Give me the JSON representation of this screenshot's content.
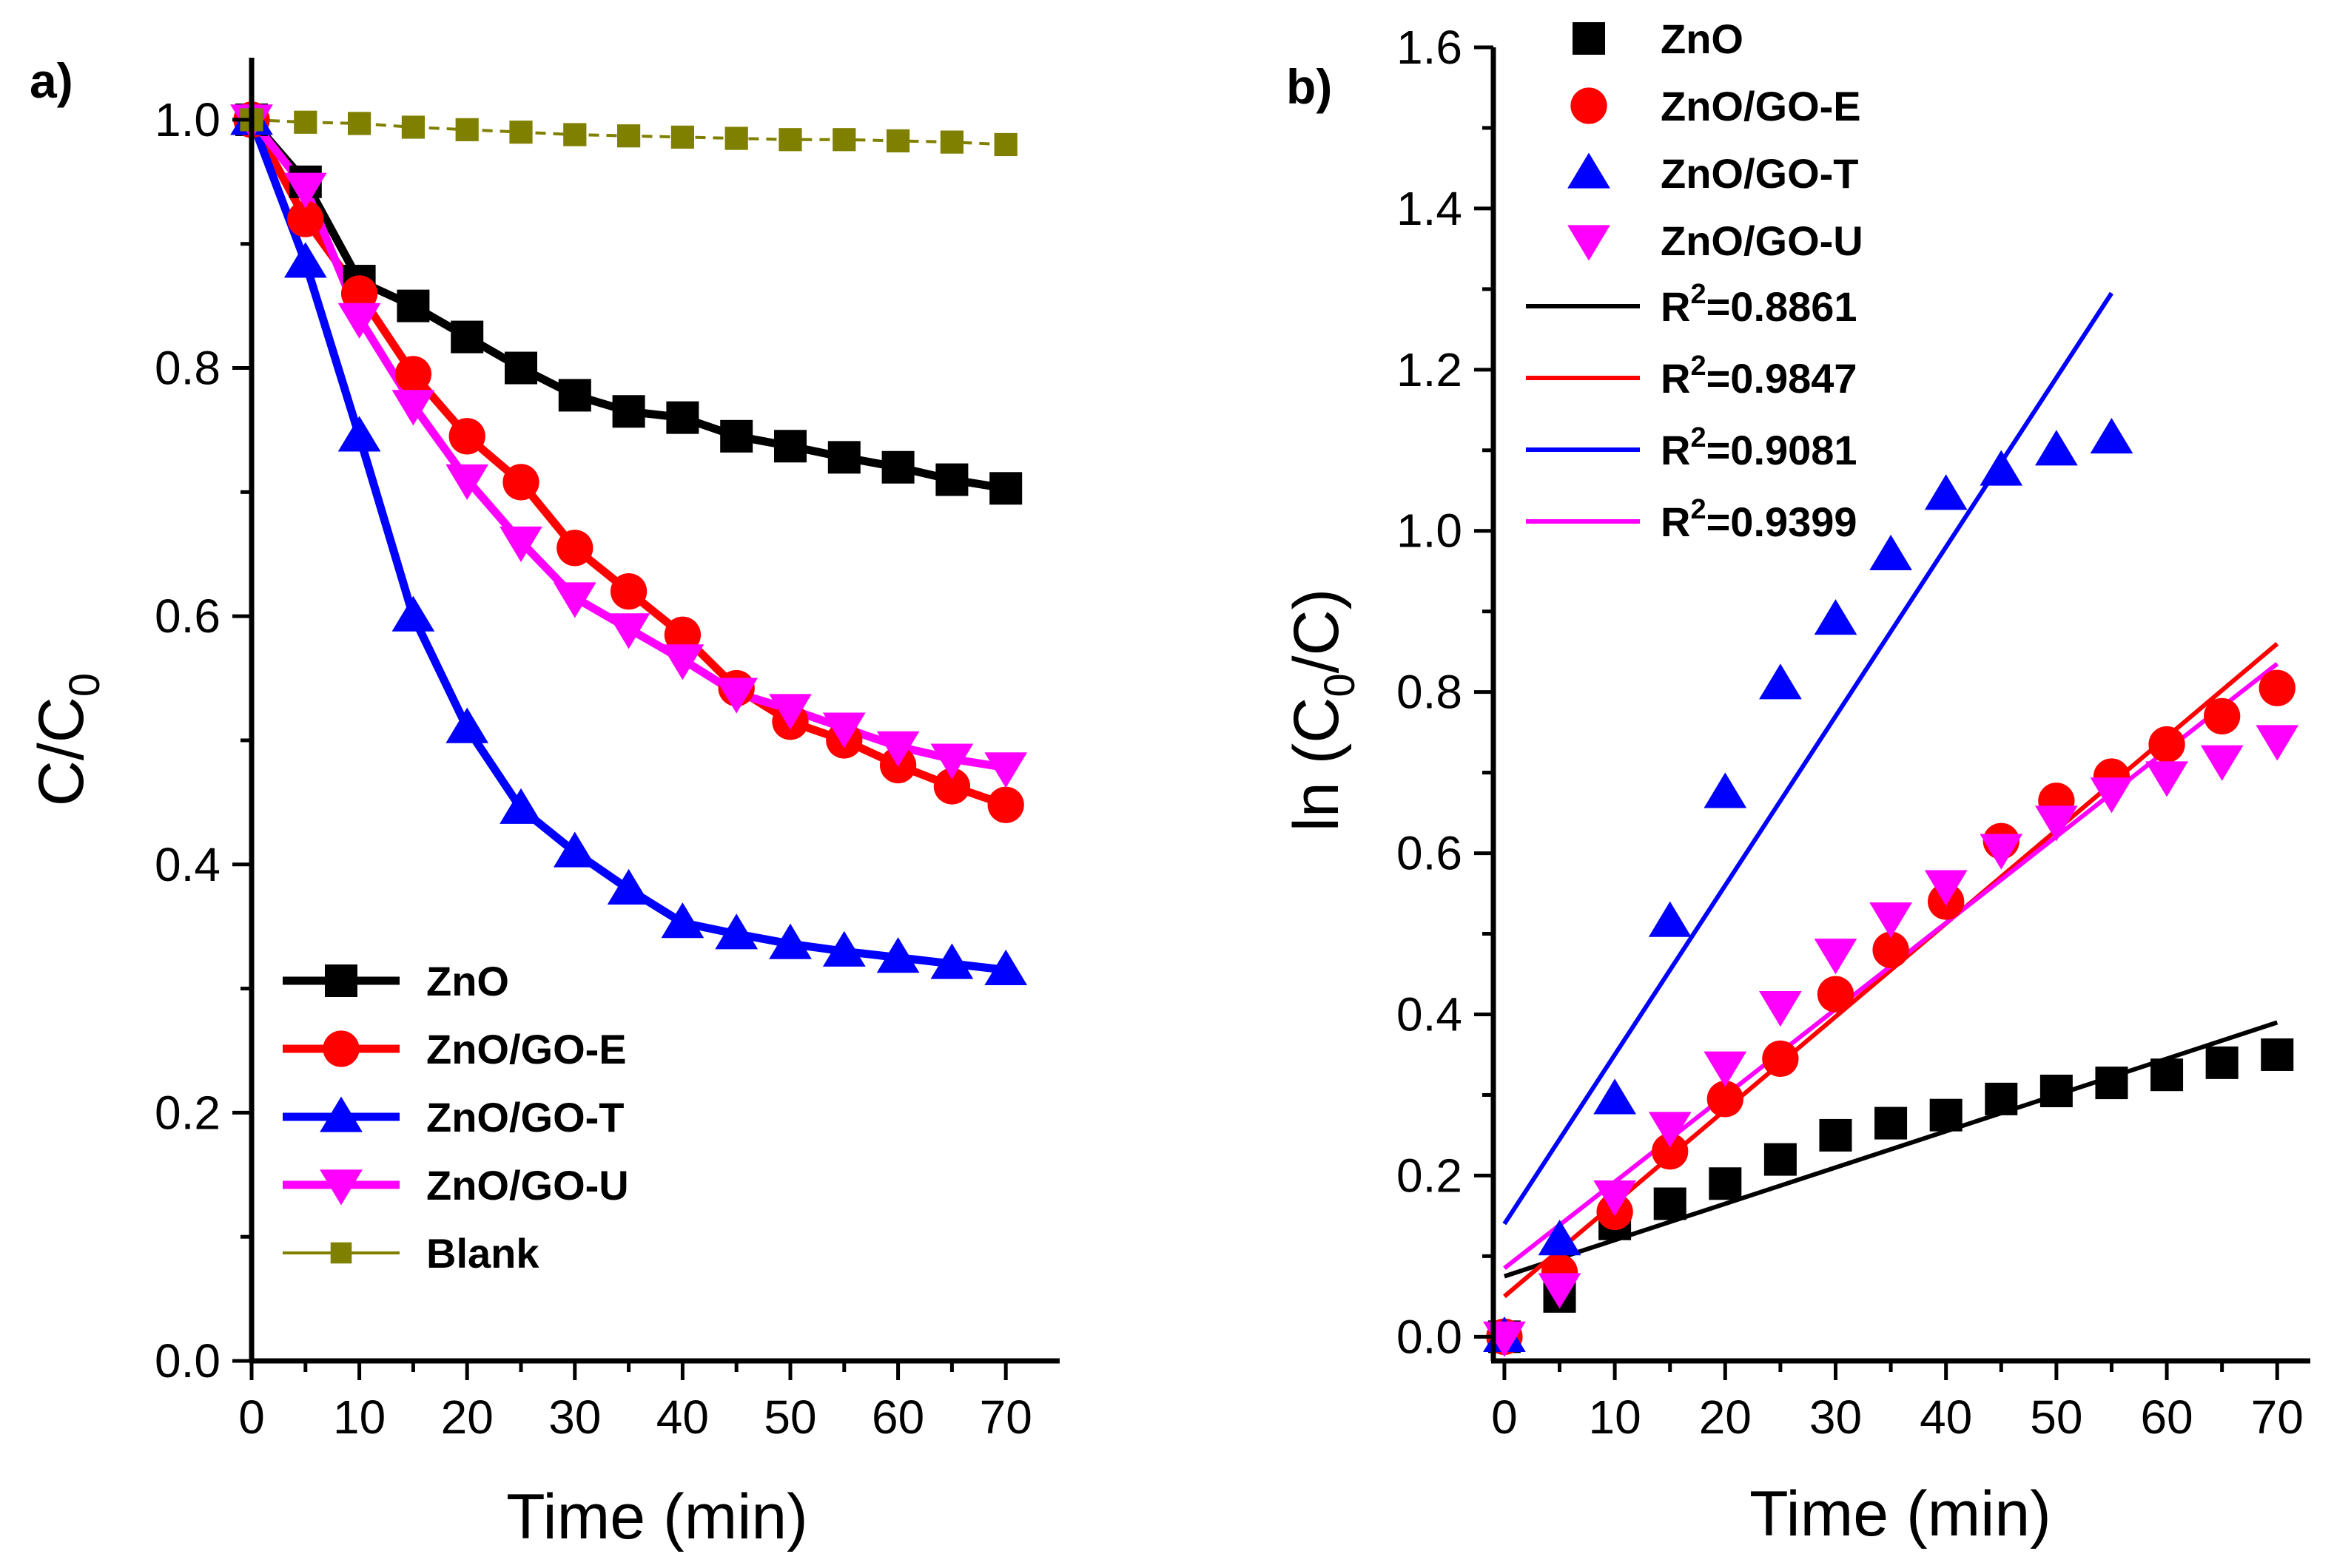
{
  "chart_data": [
    {
      "type": "line",
      "panel_label": "a)",
      "xlabel": "Time (min)",
      "ylabel_main": "C/C",
      "ylabel_sub": "0",
      "xlim": [
        0,
        75
      ],
      "ylim": [
        0,
        1.05
      ],
      "xticks": [
        0,
        10,
        20,
        30,
        40,
        50,
        60,
        70
      ],
      "xtick_labels": [
        "0",
        "10",
        "20",
        "30",
        "40",
        "50",
        "60",
        "70"
      ],
      "yticks": [
        0,
        0.2,
        0.4,
        0.6,
        0.8,
        1.0
      ],
      "ytick_labels": [
        "0.0",
        "0.2",
        "0.4",
        "0.6",
        "0.8",
        "1.0"
      ],
      "x": [
        0,
        5,
        10,
        15,
        20,
        25,
        30,
        35,
        40,
        45,
        50,
        55,
        60,
        65,
        70
      ],
      "legend_position": "bottom-left",
      "series": [
        {
          "name": "ZnO",
          "color": "#000000",
          "marker": "square",
          "values": [
            1.0,
            0.95,
            0.87,
            0.85,
            0.825,
            0.8,
            0.778,
            0.765,
            0.76,
            0.745,
            0.737,
            0.728,
            0.72,
            0.71,
            0.703
          ]
        },
        {
          "name": "ZnO/GO-E",
          "color": "#ff0000",
          "marker": "circle",
          "values": [
            1.0,
            0.92,
            0.86,
            0.795,
            0.745,
            0.708,
            0.655,
            0.62,
            0.585,
            0.542,
            0.515,
            0.5,
            0.48,
            0.463,
            0.448
          ]
        },
        {
          "name": "ZnO/GO-T",
          "color": "#0000ff",
          "marker": "triangle-up",
          "values": [
            1.0,
            0.885,
            0.745,
            0.6,
            0.51,
            0.445,
            0.41,
            0.38,
            0.353,
            0.344,
            0.336,
            0.33,
            0.325,
            0.32,
            0.315
          ]
        },
        {
          "name": "ZnO/GO-U",
          "color": "#ff00ff",
          "marker": "triangle-down",
          "values": [
            1.0,
            0.945,
            0.84,
            0.77,
            0.71,
            0.66,
            0.615,
            0.59,
            0.565,
            0.538,
            0.525,
            0.51,
            0.495,
            0.485,
            0.478
          ]
        },
        {
          "name": "Blank",
          "color": "#808000",
          "marker": "small-square",
          "dashed": true,
          "values": [
            1.0,
            0.998,
            0.997,
            0.994,
            0.992,
            0.99,
            0.988,
            0.987,
            0.986,
            0.985,
            0.984,
            0.984,
            0.983,
            0.982,
            0.98
          ]
        }
      ]
    },
    {
      "type": "scatter",
      "panel_label": "b)",
      "xlabel": "Time (min)",
      "ylabel_pre": "ln (C",
      "ylabel_sub": "0",
      "ylabel_post": "/C)",
      "xlim": [
        -1,
        73
      ],
      "ylim": [
        -0.03,
        1.6
      ],
      "xticks": [
        0,
        10,
        20,
        30,
        40,
        50,
        60,
        70
      ],
      "xtick_labels": [
        "0",
        "10",
        "20",
        "30",
        "40",
        "50",
        "60",
        "70"
      ],
      "yticks": [
        0,
        0.2,
        0.4,
        0.6,
        0.8,
        1.0,
        1.2,
        1.4,
        1.6
      ],
      "ytick_labels": [
        "0.0",
        "0.2",
        "0.4",
        "0.6",
        "0.8",
        "1.0",
        "1.2",
        "1.4",
        "1.6"
      ],
      "legend_position": "top-center",
      "series": [
        {
          "name": "ZnO",
          "color": "#000000",
          "marker": "square",
          "x": [
            0,
            5,
            10,
            15,
            20,
            25,
            30,
            35,
            40,
            45,
            50,
            55,
            60,
            65,
            70
          ],
          "values": [
            0,
            0.05,
            0.14,
            0.165,
            0.19,
            0.22,
            0.25,
            0.265,
            0.275,
            0.295,
            0.305,
            0.315,
            0.325,
            0.34,
            0.35
          ]
        },
        {
          "name": "ZnO/GO-E",
          "color": "#ff0000",
          "marker": "circle",
          "x": [
            0,
            5,
            10,
            15,
            20,
            25,
            30,
            35,
            40,
            45,
            50,
            55,
            60,
            65,
            70
          ],
          "values": [
            0,
            0.08,
            0.155,
            0.23,
            0.295,
            0.345,
            0.425,
            0.48,
            0.54,
            0.615,
            0.665,
            0.695,
            0.735,
            0.77,
            0.805
          ]
        },
        {
          "name": "ZnO/GO-T",
          "color": "#0000ff",
          "marker": "triangle-up",
          "x": [
            0,
            5,
            10,
            15,
            20,
            25,
            30,
            35,
            40,
            45,
            50,
            55
          ],
          "values": [
            0,
            0.12,
            0.295,
            0.515,
            0.675,
            0.81,
            0.89,
            0.97,
            1.045,
            1.075,
            1.1,
            1.115
          ]
        },
        {
          "name": "ZnO/GO-U",
          "color": "#ff00ff",
          "marker": "triangle-down",
          "x": [
            0,
            5,
            10,
            15,
            20,
            25,
            30,
            35,
            40,
            45,
            50,
            55,
            60,
            65,
            70
          ],
          "values": [
            0,
            0.06,
            0.175,
            0.26,
            0.335,
            0.41,
            0.475,
            0.52,
            0.56,
            0.605,
            0.64,
            0.675,
            0.695,
            0.715,
            0.74
          ]
        }
      ],
      "fits": [
        {
          "color": "#000000",
          "label_main": "R",
          "label_sup": "2",
          "label_value": "=0.8861",
          "x_start": 0,
          "x_end": 70,
          "y_start": 0.075,
          "y_end": 0.39
        },
        {
          "color": "#ff0000",
          "label_main": "R",
          "label_sup": "2",
          "label_value": "=0.9847",
          "x_start": 0,
          "x_end": 70,
          "y_start": 0.05,
          "y_end": 0.86
        },
        {
          "color": "#0000ff",
          "label_main": "R",
          "label_sup": "2",
          "label_value": "=0.9081",
          "x_start": 0,
          "x_end": 55,
          "y_start": 0.14,
          "y_end": 1.295
        },
        {
          "color": "#ff00ff",
          "label_main": "R",
          "label_sup": "2",
          "label_value": "=0.9399",
          "x_start": 0,
          "x_end": 70,
          "y_start": 0.085,
          "y_end": 0.835
        }
      ]
    }
  ]
}
